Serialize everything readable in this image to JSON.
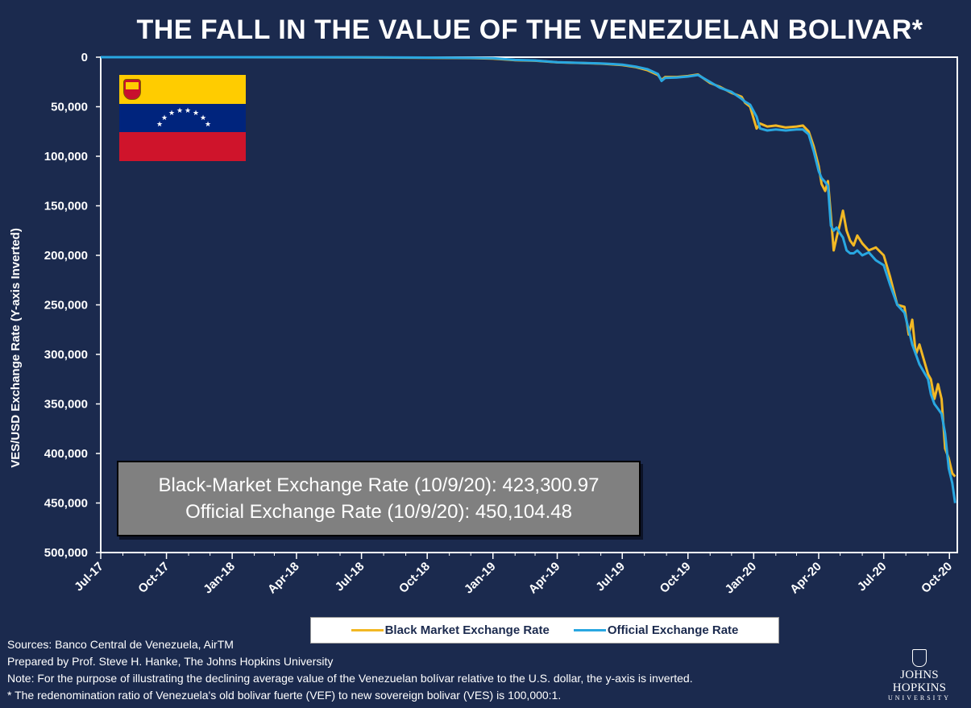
{
  "title": "THE FALL IN THE VALUE OF THE VENEZUELAN BOLIVAR*",
  "colors": {
    "background": "#1b2a4e",
    "black_market": "#f2b824",
    "official": "#29a7e1",
    "flag_yellow": "#ffcc00",
    "flag_blue": "#00247d",
    "flag_red": "#cf142b"
  },
  "flag": {
    "icon": "venezuela-flag-icon"
  },
  "info_box": {
    "line1": "Black-Market Exchange Rate (10/9/20): 423,300.97",
    "line2": "Official Exchange Rate (10/9/20): 450,104.48"
  },
  "legend": {
    "black_market_label": "Black Market Exchange Rate",
    "official_label": "Official Exchange Rate"
  },
  "footnotes": {
    "sources": "Sources: Banco Central de Venezuela, AirTM",
    "prepared": "Prepared by Prof. Steve H. Hanke, The Johns Hopkins University",
    "note": "Note: For the purpose of illustrating the declining average value of the Venezuelan bolívar relative to the U.S. dollar, the y-axis is inverted.",
    "ratio": "* The redenomination ratio of Venezuela's old bolivar fuerte (VEF) to new sovereign bolivar (VES) is 100,000:1."
  },
  "logo": {
    "name": "JOHNS HOPKINS",
    "sub": "UNIVERSITY",
    "icon": "jhu-shield-icon"
  },
  "chart_data": {
    "type": "line",
    "ylabel": "VES/USD Exchange Rate (Y-axis Inverted)",
    "y_inverted": true,
    "ylim": [
      0,
      500000
    ],
    "yticks": [
      0,
      50000,
      100000,
      150000,
      200000,
      250000,
      300000,
      350000,
      400000,
      450000,
      500000
    ],
    "ytick_labels": [
      "0",
      "50,000",
      "100,000",
      "150,000",
      "200,000",
      "250,000",
      "300,000",
      "350,000",
      "400,000",
      "450,000",
      "500,000"
    ],
    "xlim": [
      "2017-07-01",
      "2020-10-12"
    ],
    "xticks": [
      "2017-07-01",
      "2017-10-01",
      "2018-01-01",
      "2018-04-01",
      "2018-07-01",
      "2018-10-01",
      "2019-01-01",
      "2019-04-01",
      "2019-07-01",
      "2019-10-01",
      "2020-01-01",
      "2020-04-01",
      "2020-07-01",
      "2020-10-01"
    ],
    "xtick_labels": [
      "Jul-17",
      "Oct-17",
      "Jan-18",
      "Apr-18",
      "Jul-18",
      "Oct-18",
      "Jan-19",
      "Apr-19",
      "Jul-19",
      "Oct-19",
      "Jan-20",
      "Apr-20",
      "Jul-20",
      "Oct-20"
    ],
    "grid": false,
    "legend_position": "bottom",
    "series": [
      {
        "name": "Black Market Exchange Rate",
        "color": "#f2b824",
        "points": [
          [
            "2017-07-01",
            1
          ],
          [
            "2017-10-01",
            3
          ],
          [
            "2018-01-01",
            12
          ],
          [
            "2018-04-01",
            60
          ],
          [
            "2018-07-01",
            250
          ],
          [
            "2018-10-01",
            600
          ],
          [
            "2018-12-01",
            900
          ],
          [
            "2019-01-01",
            1500
          ],
          [
            "2019-02-01",
            3000
          ],
          [
            "2019-03-01",
            3600
          ],
          [
            "2019-04-01",
            5200
          ],
          [
            "2019-05-01",
            5800
          ],
          [
            "2019-06-01",
            6500
          ],
          [
            "2019-07-01",
            8000
          ],
          [
            "2019-07-20",
            10000
          ],
          [
            "2019-08-05",
            13000
          ],
          [
            "2019-08-20",
            18000
          ],
          [
            "2019-08-25",
            23000
          ],
          [
            "2019-08-30",
            20000
          ],
          [
            "2019-09-15",
            20000
          ],
          [
            "2019-10-01",
            19000
          ],
          [
            "2019-10-15",
            17500
          ],
          [
            "2019-11-01",
            26000
          ],
          [
            "2019-11-15",
            30000
          ],
          [
            "2019-12-01",
            36000
          ],
          [
            "2019-12-15",
            40000
          ],
          [
            "2019-12-20",
            46000
          ],
          [
            "2019-12-27",
            50000
          ],
          [
            "2020-01-05",
            72000
          ],
          [
            "2020-01-10",
            67000
          ],
          [
            "2020-01-20",
            70000
          ],
          [
            "2020-02-01",
            69000
          ],
          [
            "2020-02-15",
            71000
          ],
          [
            "2020-03-01",
            70000
          ],
          [
            "2020-03-10",
            69000
          ],
          [
            "2020-03-18",
            75000
          ],
          [
            "2020-03-25",
            90000
          ],
          [
            "2020-04-01",
            110000
          ],
          [
            "2020-04-05",
            128000
          ],
          [
            "2020-04-10",
            135000
          ],
          [
            "2020-04-14",
            125000
          ],
          [
            "2020-04-18",
            160000
          ],
          [
            "2020-04-22",
            195000
          ],
          [
            "2020-04-26",
            182000
          ],
          [
            "2020-05-01",
            168000
          ],
          [
            "2020-05-05",
            155000
          ],
          [
            "2020-05-10",
            175000
          ],
          [
            "2020-05-15",
            185000
          ],
          [
            "2020-05-20",
            190000
          ],
          [
            "2020-05-25",
            180000
          ],
          [
            "2020-06-01",
            188000
          ],
          [
            "2020-06-10",
            195000
          ],
          [
            "2020-06-20",
            192000
          ],
          [
            "2020-07-01",
            200000
          ],
          [
            "2020-07-10",
            222000
          ],
          [
            "2020-07-20",
            250000
          ],
          [
            "2020-07-30",
            252000
          ],
          [
            "2020-08-05",
            280000
          ],
          [
            "2020-08-10",
            265000
          ],
          [
            "2020-08-15",
            300000
          ],
          [
            "2020-08-20",
            290000
          ],
          [
            "2020-09-01",
            320000
          ],
          [
            "2020-09-05",
            325000
          ],
          [
            "2020-09-10",
            345000
          ],
          [
            "2020-09-15",
            330000
          ],
          [
            "2020-09-20",
            345000
          ],
          [
            "2020-09-25",
            395000
          ],
          [
            "2020-09-30",
            405000
          ],
          [
            "2020-10-05",
            420000
          ],
          [
            "2020-10-09",
            423301
          ]
        ]
      },
      {
        "name": "Official Exchange Rate",
        "color": "#29a7e1",
        "points": [
          [
            "2017-07-01",
            1
          ],
          [
            "2017-10-01",
            2
          ],
          [
            "2018-01-01",
            5
          ],
          [
            "2018-04-01",
            20
          ],
          [
            "2018-07-01",
            80
          ],
          [
            "2018-10-01",
            400
          ],
          [
            "2018-12-01",
            700
          ],
          [
            "2019-01-01",
            1000
          ],
          [
            "2019-02-01",
            2800
          ],
          [
            "2019-03-01",
            3300
          ],
          [
            "2019-04-01",
            5000
          ],
          [
            "2019-05-01",
            5700
          ],
          [
            "2019-06-01",
            6300
          ],
          [
            "2019-07-01",
            7500
          ],
          [
            "2019-07-20",
            9500
          ],
          [
            "2019-08-05",
            12000
          ],
          [
            "2019-08-20",
            17000
          ],
          [
            "2019-08-25",
            24000
          ],
          [
            "2019-08-30",
            21000
          ],
          [
            "2019-09-15",
            20500
          ],
          [
            "2019-10-01",
            19500
          ],
          [
            "2019-10-15",
            18000
          ],
          [
            "2019-11-01",
            25000
          ],
          [
            "2019-11-15",
            31000
          ],
          [
            "2019-12-01",
            35000
          ],
          [
            "2019-12-15",
            42000
          ],
          [
            "2019-12-20",
            45000
          ],
          [
            "2019-12-27",
            48000
          ],
          [
            "2020-01-05",
            60000
          ],
          [
            "2020-01-10",
            72000
          ],
          [
            "2020-01-20",
            74000
          ],
          [
            "2020-02-01",
            73000
          ],
          [
            "2020-02-15",
            74000
          ],
          [
            "2020-03-01",
            73000
          ],
          [
            "2020-03-10",
            73000
          ],
          [
            "2020-03-18",
            78000
          ],
          [
            "2020-03-25",
            95000
          ],
          [
            "2020-04-01",
            115000
          ],
          [
            "2020-04-05",
            122000
          ],
          [
            "2020-04-10",
            126000
          ],
          [
            "2020-04-14",
            130000
          ],
          [
            "2020-04-18",
            170000
          ],
          [
            "2020-04-22",
            175000
          ],
          [
            "2020-04-26",
            172000
          ],
          [
            "2020-05-01",
            178000
          ],
          [
            "2020-05-05",
            182000
          ],
          [
            "2020-05-10",
            195000
          ],
          [
            "2020-05-15",
            198000
          ],
          [
            "2020-05-20",
            198000
          ],
          [
            "2020-05-25",
            195000
          ],
          [
            "2020-06-01",
            200000
          ],
          [
            "2020-06-10",
            197000
          ],
          [
            "2020-06-20",
            205000
          ],
          [
            "2020-07-01",
            210000
          ],
          [
            "2020-07-10",
            230000
          ],
          [
            "2020-07-20",
            250000
          ],
          [
            "2020-07-30",
            258000
          ],
          [
            "2020-08-05",
            275000
          ],
          [
            "2020-08-10",
            290000
          ],
          [
            "2020-08-15",
            300000
          ],
          [
            "2020-08-20",
            310000
          ],
          [
            "2020-09-01",
            325000
          ],
          [
            "2020-09-05",
            340000
          ],
          [
            "2020-09-10",
            350000
          ],
          [
            "2020-09-15",
            355000
          ],
          [
            "2020-09-20",
            360000
          ],
          [
            "2020-09-25",
            380000
          ],
          [
            "2020-09-30",
            415000
          ],
          [
            "2020-10-05",
            430000
          ],
          [
            "2020-10-09",
            450104
          ]
        ]
      }
    ]
  }
}
